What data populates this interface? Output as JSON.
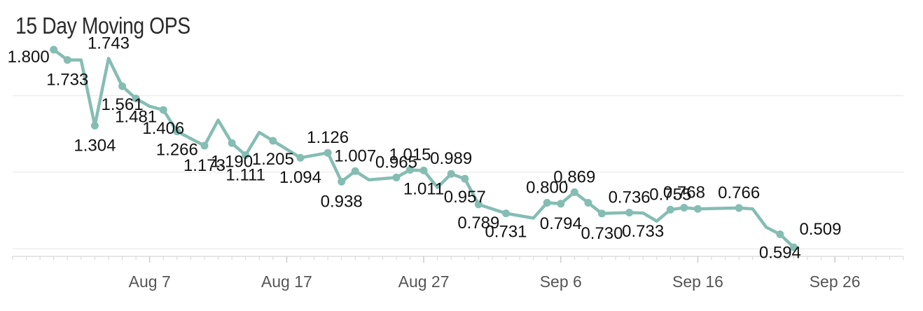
{
  "chart_data": {
    "type": "line",
    "title": "15 Day Moving OPS",
    "xlabel": "",
    "ylabel": "",
    "x_axis": "dates",
    "xlim": [
      "2024-07-28",
      "2024-10-01"
    ],
    "ylim": [
      0.45,
      1.85
    ],
    "x_ticks": [
      "Aug 7",
      "Aug 17",
      "Aug 27",
      "Sep 6",
      "Sep 16",
      "Sep 26"
    ],
    "x_tick_dates": [
      "2024-08-07",
      "2024-08-17",
      "2024-08-27",
      "2024-09-06",
      "2024-09-16",
      "2024-09-26"
    ],
    "y_gridlines": [
      0.5,
      1.0,
      1.5
    ],
    "grid": true,
    "legend": "none",
    "line_color": "#85bdb3",
    "marker_color": "#85bdb3",
    "series": [
      {
        "points": [
          {
            "x": "2024-07-31",
            "y": 1.8,
            "label": "1.800",
            "marker": true
          },
          {
            "x": "2024-08-01",
            "y": 1.733,
            "label": "1.733",
            "marker": true
          },
          {
            "x": "2024-08-02",
            "y": 1.733,
            "label": "",
            "marker": false
          },
          {
            "x": "2024-08-03",
            "y": 1.304,
            "label": "1.304",
            "marker": true
          },
          {
            "x": "2024-08-04",
            "y": 1.743,
            "label": "1.743",
            "marker": false
          },
          {
            "x": "2024-08-05",
            "y": 1.561,
            "label": "1.561",
            "marker": true
          },
          {
            "x": "2024-08-06",
            "y": 1.481,
            "label": "1.481",
            "marker": true
          },
          {
            "x": "2024-08-07",
            "y": 1.43,
            "label": "",
            "marker": false
          },
          {
            "x": "2024-08-08",
            "y": 1.406,
            "label": "1.406",
            "marker": true
          },
          {
            "x": "2024-08-09",
            "y": 1.266,
            "label": "1.266",
            "marker": true
          },
          {
            "x": "2024-08-11",
            "y": 1.173,
            "label": "1.173",
            "marker": true
          },
          {
            "x": "2024-08-12",
            "y": 1.34,
            "label": "",
            "marker": false
          },
          {
            "x": "2024-08-13",
            "y": 1.19,
            "label": "1.190",
            "marker": true
          },
          {
            "x": "2024-08-14",
            "y": 1.111,
            "label": "1.111",
            "marker": true
          },
          {
            "x": "2024-08-15",
            "y": 1.26,
            "label": "",
            "marker": false
          },
          {
            "x": "2024-08-16",
            "y": 1.205,
            "label": "1.205",
            "marker": true
          },
          {
            "x": "2024-08-18",
            "y": 1.094,
            "label": "1.094",
            "marker": true
          },
          {
            "x": "2024-08-20",
            "y": 1.126,
            "label": "1.126",
            "marker": true
          },
          {
            "x": "2024-08-21",
            "y": 0.938,
            "label": "0.938",
            "marker": true
          },
          {
            "x": "2024-08-22",
            "y": 1.007,
            "label": "1.007",
            "marker": true
          },
          {
            "x": "2024-08-23",
            "y": 0.95,
            "label": "",
            "marker": false
          },
          {
            "x": "2024-08-25",
            "y": 0.965,
            "label": "0.965",
            "marker": true
          },
          {
            "x": "2024-08-26",
            "y": 1.015,
            "label": "1.015",
            "marker": true
          },
          {
            "x": "2024-08-27",
            "y": 1.011,
            "label": "1.011",
            "marker": true
          },
          {
            "x": "2024-08-28",
            "y": 0.9,
            "label": "",
            "marker": false
          },
          {
            "x": "2024-08-29",
            "y": 0.989,
            "label": "0.989",
            "marker": true
          },
          {
            "x": "2024-08-30",
            "y": 0.957,
            "label": "0.957",
            "marker": true
          },
          {
            "x": "2024-08-31",
            "y": 0.789,
            "label": "0.789",
            "marker": true
          },
          {
            "x": "2024-09-02",
            "y": 0.731,
            "label": "0.731",
            "marker": true
          },
          {
            "x": "2024-09-04",
            "y": 0.7,
            "label": "",
            "marker": false
          },
          {
            "x": "2024-09-05",
            "y": 0.8,
            "label": "0.800",
            "marker": true
          },
          {
            "x": "2024-09-06",
            "y": 0.794,
            "label": "0.794",
            "marker": true
          },
          {
            "x": "2024-09-07",
            "y": 0.869,
            "label": "0.869",
            "marker": true
          },
          {
            "x": "2024-09-08",
            "y": 0.8,
            "label": "",
            "marker": true
          },
          {
            "x": "2024-09-09",
            "y": 0.73,
            "label": "0.730",
            "marker": true
          },
          {
            "x": "2024-09-11",
            "y": 0.736,
            "label": "0.736",
            "marker": true
          },
          {
            "x": "2024-09-12",
            "y": 0.733,
            "label": "0.733",
            "marker": false
          },
          {
            "x": "2024-09-13",
            "y": 0.68,
            "label": "",
            "marker": false
          },
          {
            "x": "2024-09-14",
            "y": 0.755,
            "label": "0.755",
            "marker": true
          },
          {
            "x": "2024-09-15",
            "y": 0.768,
            "label": "0.768",
            "marker": true
          },
          {
            "x": "2024-09-16",
            "y": 0.76,
            "label": "",
            "marker": true
          },
          {
            "x": "2024-09-19",
            "y": 0.766,
            "label": "0.766",
            "marker": true
          },
          {
            "x": "2024-09-20",
            "y": 0.76,
            "label": "",
            "marker": false
          },
          {
            "x": "2024-09-21",
            "y": 0.64,
            "label": "",
            "marker": false
          },
          {
            "x": "2024-09-22",
            "y": 0.594,
            "label": "0.594",
            "marker": true
          },
          {
            "x": "2024-09-23",
            "y": 0.509,
            "label": "0.509",
            "marker": true
          }
        ]
      }
    ]
  }
}
